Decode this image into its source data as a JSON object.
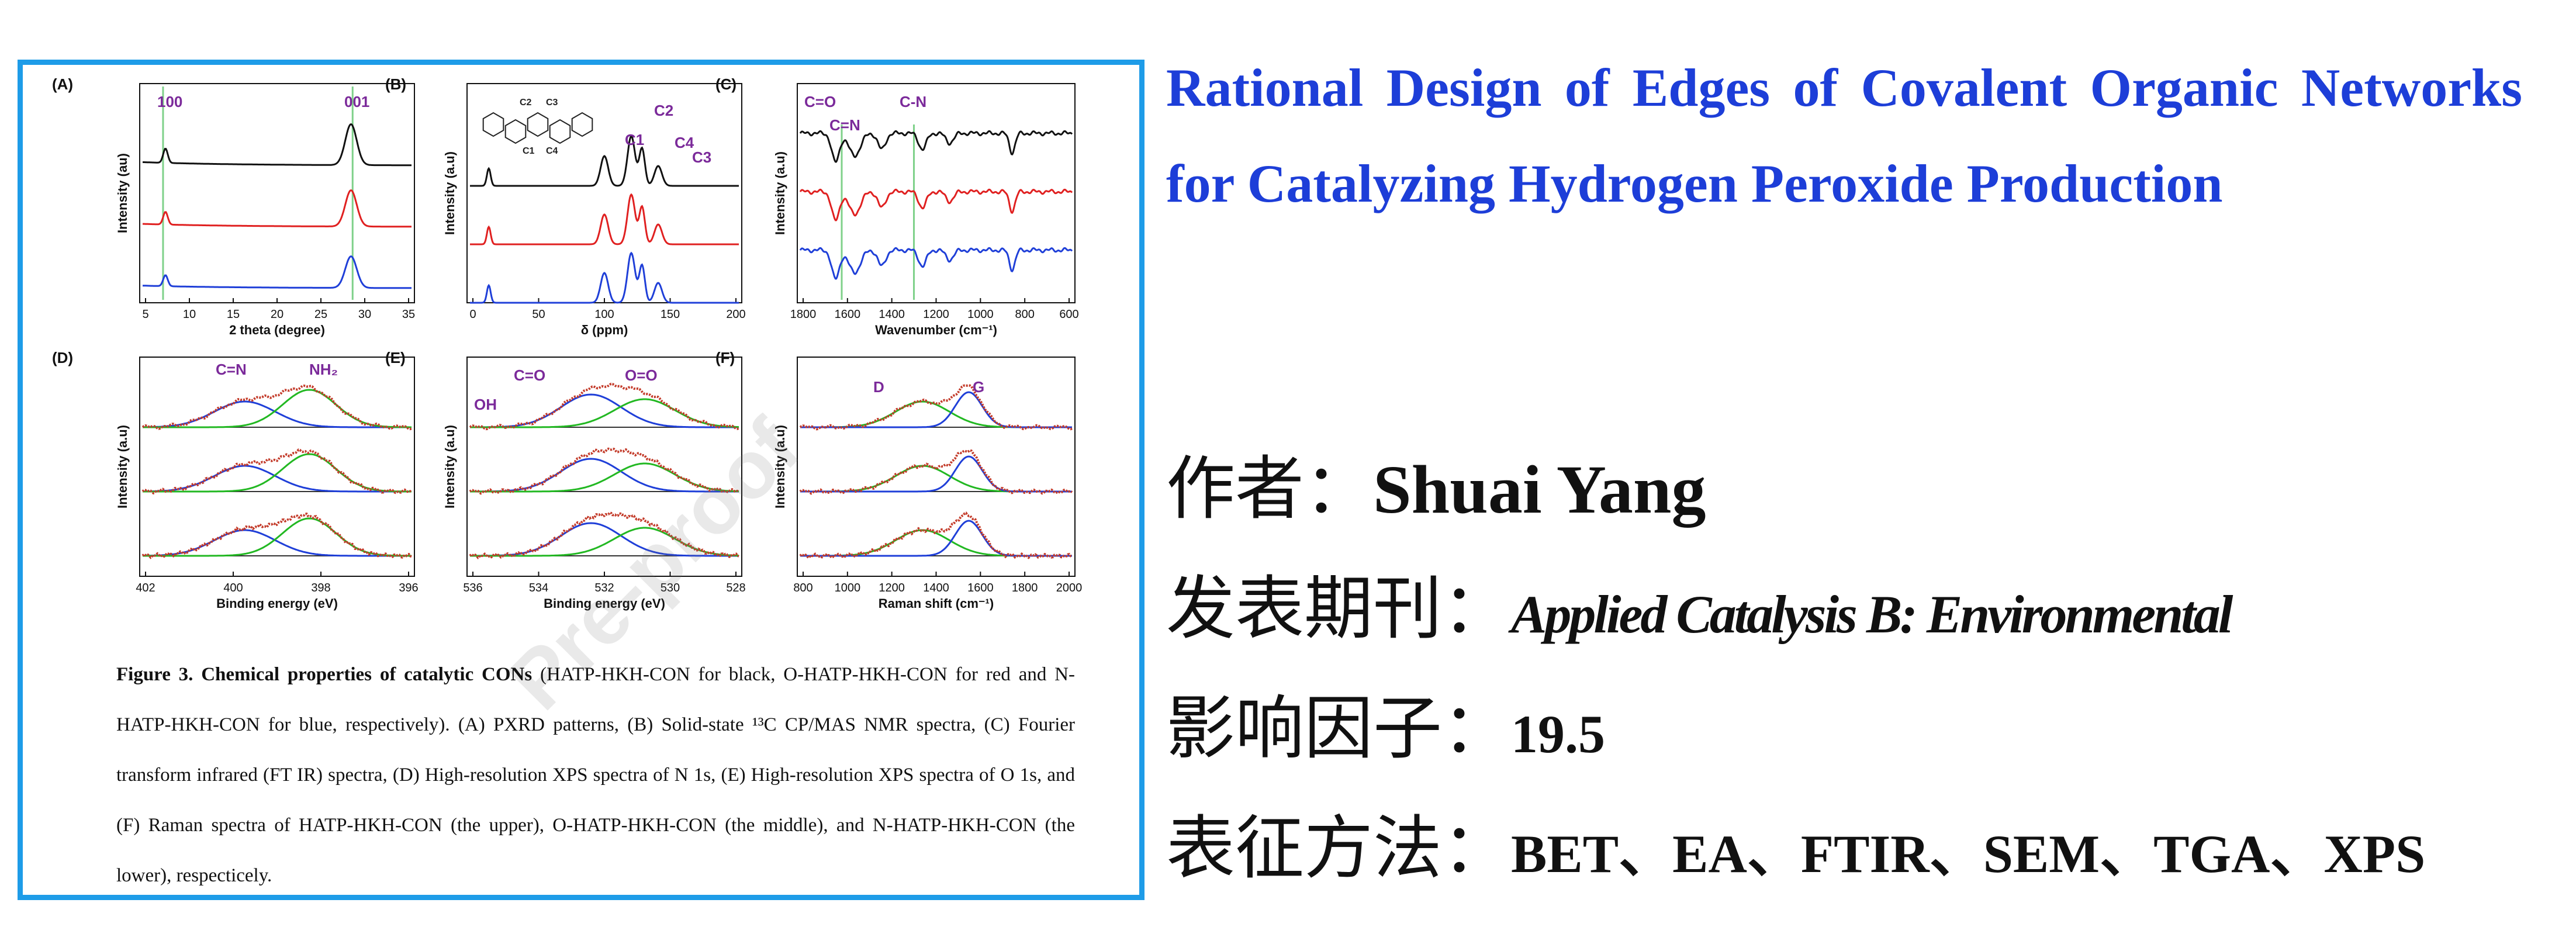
{
  "figure": {
    "panels": {
      "A": {
        "letter": "(A)",
        "xlabel": "2 theta (degree)",
        "ylabel": "Intensity (au)",
        "ticks": [
          "5",
          "10",
          "15",
          "20",
          "25",
          "30",
          "35"
        ],
        "peaks": [
          "100",
          "001"
        ]
      },
      "B": {
        "letter": "(B)",
        "xlabel": "δ (ppm)",
        "ylabel": "Intensity (a.u)",
        "ticks": [
          "0",
          "50",
          "100",
          "150",
          "200"
        ],
        "peaks": [
          "C1",
          "C2",
          "C4",
          "C3"
        ],
        "structure_labels": [
          "C2",
          "C3",
          "C1",
          "C4"
        ]
      },
      "C": {
        "letter": "(C)",
        "xlabel": "Wavenumber (cm⁻¹)",
        "ylabel": "Intensity (a.u)",
        "ticks": [
          "1800",
          "1600",
          "1400",
          "1200",
          "1000",
          "800",
          "600"
        ],
        "peaks": [
          "C=O",
          "C=N",
          "C-N"
        ]
      },
      "D": {
        "letter": "(D)",
        "xlabel": "Binding energy (eV)",
        "ylabel": "Intensity (a.u)",
        "ticks": [
          "402",
          "400",
          "398",
          "396"
        ],
        "peaks": [
          "C=N",
          "NH₂"
        ]
      },
      "E": {
        "letter": "(E)",
        "xlabel": "Binding energy (eV)",
        "ylabel": "Intensity (a.u)",
        "ticks": [
          "536",
          "534",
          "532",
          "530",
          "528"
        ],
        "peaks": [
          "OH",
          "C=O",
          "O=O"
        ]
      },
      "F": {
        "letter": "(F)",
        "xlabel": "Raman shift (cm⁻¹)",
        "ylabel": "Intensity (a.u)",
        "ticks": [
          "800",
          "1000",
          "1200",
          "1400",
          "1600",
          "1800",
          "2000"
        ],
        "peaks": [
          "D",
          "G"
        ]
      }
    },
    "series_colors": {
      "black": "#111111",
      "red": "#e02020",
      "blue": "#1f3fd8",
      "green": "#22b822",
      "guide": "#7fd18a",
      "purple": "#7b2a9a"
    },
    "caption_bold": "Figure 3. Chemical properties of catalytic CONs",
    "caption_rest": " (HATP-HKH-CON for black, O-HATP-HKH-CON for red and N-HATP-HKH-CON for blue, respectively). (A) PXRD patterns, (B) Solid-state ¹³C CP/MAS NMR spectra, (C) Fourier transform infrared (FT IR) spectra, (D) High-resolution XPS spectra of N 1s, (E) High-resolution XPS spectra of O 1s, and (F) Raman spectra of HATP-HKH-CON (the upper), O-HATP-HKH-CON (the middle), and N-HATP-HKH-CON (the lower), respecticely.",
    "watermark": "Pre-proof"
  },
  "info": {
    "title": "Rational Design of Edges of Covalent Organic Networks for Catalyzing Hydrogen Peroxide Production",
    "author_label": "作者：",
    "author": "Shuai Yang",
    "journal_label": "发表期刊：",
    "journal": "Applied Catalysis B: Environmental",
    "impact_label": "影响因子：",
    "impact": "19.5",
    "methods_label": "表征方法：",
    "methods": "BET、EA、FTIR、SEM、TGA、XPS"
  }
}
